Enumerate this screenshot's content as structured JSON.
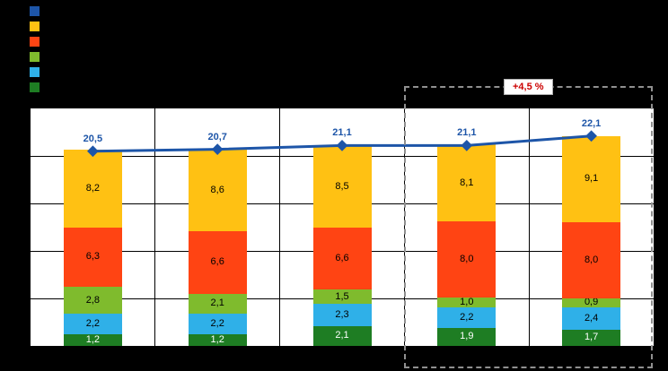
{
  "chart_data": {
    "type": "bar",
    "subtype": "stacked-bar-with-total-line",
    "title": "",
    "xlabel": "",
    "ylabel": "",
    "categories": [
      "",
      "",
      "",
      "",
      ""
    ],
    "series": [
      {
        "name": "dark-green",
        "color": "#1e7d23",
        "label_color": "#ffffff",
        "values": [
          1.2,
          1.2,
          2.1,
          1.9,
          1.7
        ],
        "labels": [
          "1,2",
          "1,2",
          "2,1",
          "1,9",
          "1,7"
        ]
      },
      {
        "name": "light-blue",
        "color": "#2fb0e8",
        "label_color": "#000000",
        "values": [
          2.2,
          2.2,
          2.3,
          2.2,
          2.4
        ],
        "labels": [
          "2,2",
          "2,2",
          "2,3",
          "2,2",
          "2,4"
        ]
      },
      {
        "name": "yellow-green",
        "color": "#7fbb2d",
        "label_color": "#000000",
        "values": [
          2.8,
          2.1,
          1.5,
          1.0,
          0.9
        ],
        "labels": [
          "2,8",
          "2,1",
          "1,5",
          "1,0",
          "0,9"
        ]
      },
      {
        "name": "orange-red",
        "color": "#ff4413",
        "label_color": "#000000",
        "values": [
          6.3,
          6.6,
          6.6,
          8.0,
          8.0
        ],
        "labels": [
          "6,3",
          "6,6",
          "6,6",
          "8,0",
          "8,0"
        ]
      },
      {
        "name": "yellow-orange",
        "color": "#ffc113",
        "label_color": "#000000",
        "values": [
          8.2,
          8.6,
          8.5,
          8.1,
          9.1
        ],
        "labels": [
          "8,2",
          "8,6",
          "8,5",
          "8,1",
          "9,1"
        ]
      }
    ],
    "line": {
      "name": "total",
      "color": "#1d55a8",
      "values": [
        20.5,
        20.7,
        21.1,
        21.1,
        22.1
      ],
      "labels": [
        "20,5",
        "20,7",
        "21,1",
        "21,1",
        "22,1"
      ]
    },
    "ylim": [
      0,
      25
    ],
    "grid_step": 5,
    "grid": "on",
    "annotation": {
      "text": "+4,5 %",
      "color": "#cc0000"
    },
    "highlight": {
      "columns": [
        3,
        4
      ],
      "style": "dashed-box"
    }
  },
  "legend": {
    "position": "top-left",
    "items": [
      {
        "name": "total-line",
        "color": "#1d55a8"
      },
      {
        "name": "yellow-orange",
        "color": "#ffc113"
      },
      {
        "name": "orange-red",
        "color": "#ff4413"
      },
      {
        "name": "yellow-green",
        "color": "#7fbb2d"
      },
      {
        "name": "light-blue",
        "color": "#2fb0e8"
      },
      {
        "name": "dark-green",
        "color": "#1e7d23"
      }
    ]
  }
}
